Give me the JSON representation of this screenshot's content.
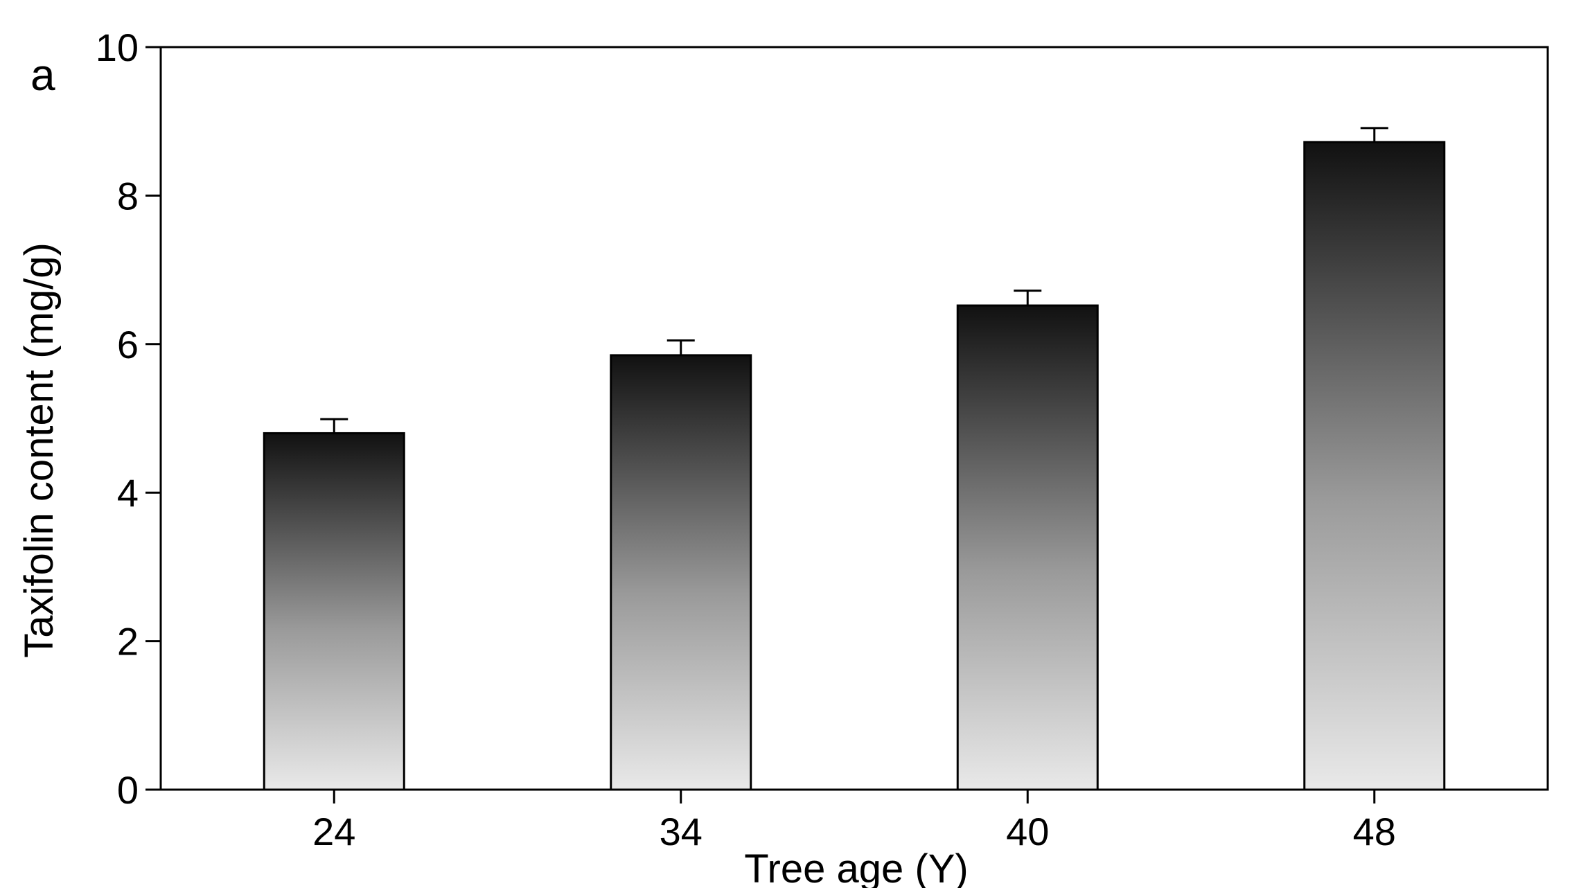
{
  "panel_label": "a",
  "chart_data": {
    "type": "bar",
    "categories": [
      "24",
      "34",
      "40",
      "48"
    ],
    "values": [
      4.8,
      5.85,
      6.52,
      8.72
    ],
    "errors": [
      0.19,
      0.2,
      0.2,
      0.19
    ],
    "title": "",
    "xlabel": "Tree age (Y)",
    "ylabel": "Taxifolin content (mg/g)",
    "ylim": [
      0,
      10
    ],
    "yticks": [
      0,
      2,
      4,
      6,
      8,
      10
    ],
    "grid": false,
    "legend": "none",
    "bar_gradient": [
      "#111111",
      "#e9e9e9"
    ],
    "axis_color": "#000000"
  }
}
